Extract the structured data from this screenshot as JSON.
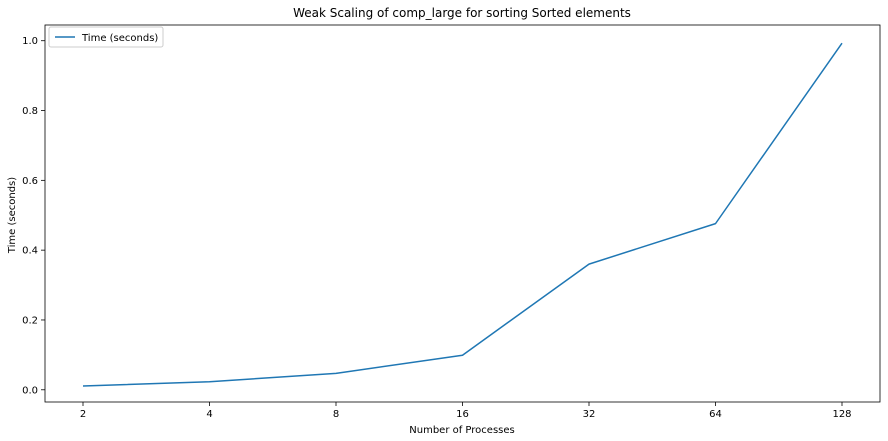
{
  "chart_data": {
    "type": "line",
    "title": "Weak Scaling of comp_large for sorting Sorted elements",
    "xlabel": "Number of Processes",
    "ylabel": "Time (seconds)",
    "categories": [
      "2",
      "4",
      "8",
      "16",
      "32",
      "64",
      "128"
    ],
    "series": [
      {
        "name": "Time (seconds)",
        "color": "#1f77b4",
        "values": [
          0.011,
          0.023,
          0.047,
          0.099,
          0.36,
          0.476,
          0.993
        ]
      }
    ],
    "ylim": [
      -0.035,
      1.045
    ],
    "yticks": [
      0.0,
      0.2,
      0.4,
      0.6,
      0.8,
      1.0
    ],
    "ytick_labels": [
      "0.0",
      "0.2",
      "0.4",
      "0.6",
      "0.8",
      "1.0"
    ],
    "grid": false,
    "legend_position": "top-left"
  }
}
